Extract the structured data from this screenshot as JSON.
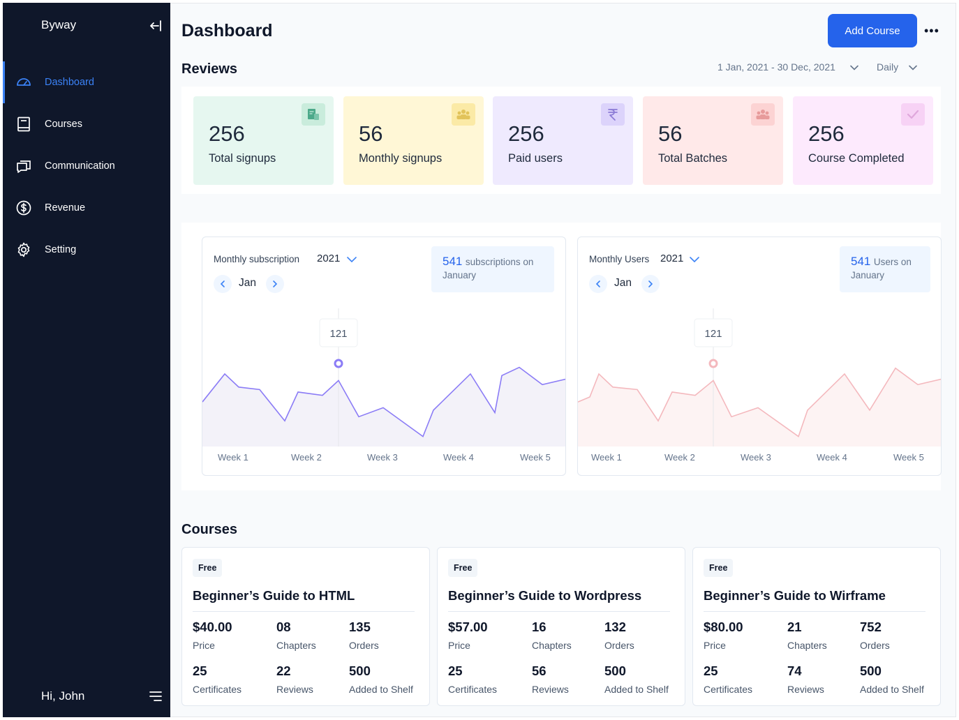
{
  "sidebar": {
    "brand": "Byway",
    "items": [
      {
        "label": "Dashboard"
      },
      {
        "label": "Courses"
      },
      {
        "label": "Communication"
      },
      {
        "label": "Revenue"
      },
      {
        "label": "Setting"
      }
    ],
    "greeting": "Hi, John"
  },
  "header": {
    "title": "Dashboard",
    "add_button": "Add Course",
    "more": "•••"
  },
  "reviews": {
    "title": "Reviews",
    "date_range": "1 Jan, 2021 - 30 Dec, 2021",
    "interval": "Daily",
    "stats": [
      {
        "value": "256",
        "label": "Total signups",
        "bg": "#e6f7f0",
        "badge_bg": "#c9ecdc",
        "icon": "signup-icon",
        "icon_color": "#4ca98a"
      },
      {
        "value": "56",
        "label": "Monthly signups",
        "bg": "#fff7d6",
        "badge_bg": "#fbeaa6",
        "icon": "group-icon",
        "icon_color": "#e2c35a"
      },
      {
        "value": "256",
        "label": "Paid users",
        "bg": "#efeafe",
        "badge_bg": "#dcd3fb",
        "icon": "rupee-icon",
        "icon_color": "#8b7bd6"
      },
      {
        "value": "56",
        "label": "Total Batches",
        "bg": "#ffe9e9",
        "badge_bg": "#fcd3d3",
        "icon": "batch-icon",
        "icon_color": "#e79b9b"
      },
      {
        "value": "256",
        "label": "Course Completed",
        "bg": "#fdeafd",
        "badge_bg": "#f7d2f5",
        "icon": "check-icon",
        "icon_color": "#e0a7dc"
      }
    ]
  },
  "charts": [
    {
      "title": "Monthly subscription",
      "year": "2021",
      "month": "Jan",
      "summary_value": "541",
      "summary_text": "subscriptions on",
      "summary_month": "January",
      "tooltip": "121",
      "color": "#8b7cf6",
      "fill": "#f3f2f9",
      "weeks": [
        "Week 1",
        "Week 2",
        "Week 3",
        "Week 4",
        "Week 5"
      ]
    },
    {
      "title": "Monthly Users",
      "year": "2021",
      "month": "Jan",
      "summary_value": "541",
      "summary_text": "Users on",
      "summary_month": "January",
      "tooltip": "121",
      "color": "#f4b8bd",
      "fill": "#fdf3f3",
      "weeks": [
        "Week 1",
        "Week 2",
        "Week 3",
        "Week 4",
        "Week 5"
      ]
    }
  ],
  "courses": {
    "title": "Courses",
    "items": [
      {
        "badge": "Free",
        "title": "Beginner’s Guide to HTML",
        "price": "$40.00",
        "price_label": "Price",
        "chapters": "08",
        "chapters_label": "Chapters",
        "orders": "135",
        "orders_label": "Orders",
        "certificates": "25",
        "certificates_label": "Certificates",
        "reviews": "22",
        "reviews_label": "Reviews",
        "shelf": "500",
        "shelf_label": "Added to Shelf"
      },
      {
        "badge": "Free",
        "title": "Beginner’s Guide to Wordpress",
        "price": "$57.00",
        "price_label": "Price",
        "chapters": "16",
        "chapters_label": "Chapters",
        "orders": "132",
        "orders_label": "Orders",
        "certificates": "25",
        "certificates_label": "Certificates",
        "reviews": "56",
        "reviews_label": "Reviews",
        "shelf": "500",
        "shelf_label": "Added to Shelf"
      },
      {
        "badge": "Free",
        "title": "Beginner’s Guide to Wirframe",
        "price": "$80.00",
        "price_label": "Price",
        "chapters": "21",
        "chapters_label": "Chapters",
        "orders": "752",
        "orders_label": "Orders",
        "certificates": "25",
        "certificates_label": "Certificates",
        "reviews": "74",
        "reviews_label": "Reviews",
        "shelf": "500",
        "shelf_label": "Added to Shelf"
      }
    ]
  }
}
